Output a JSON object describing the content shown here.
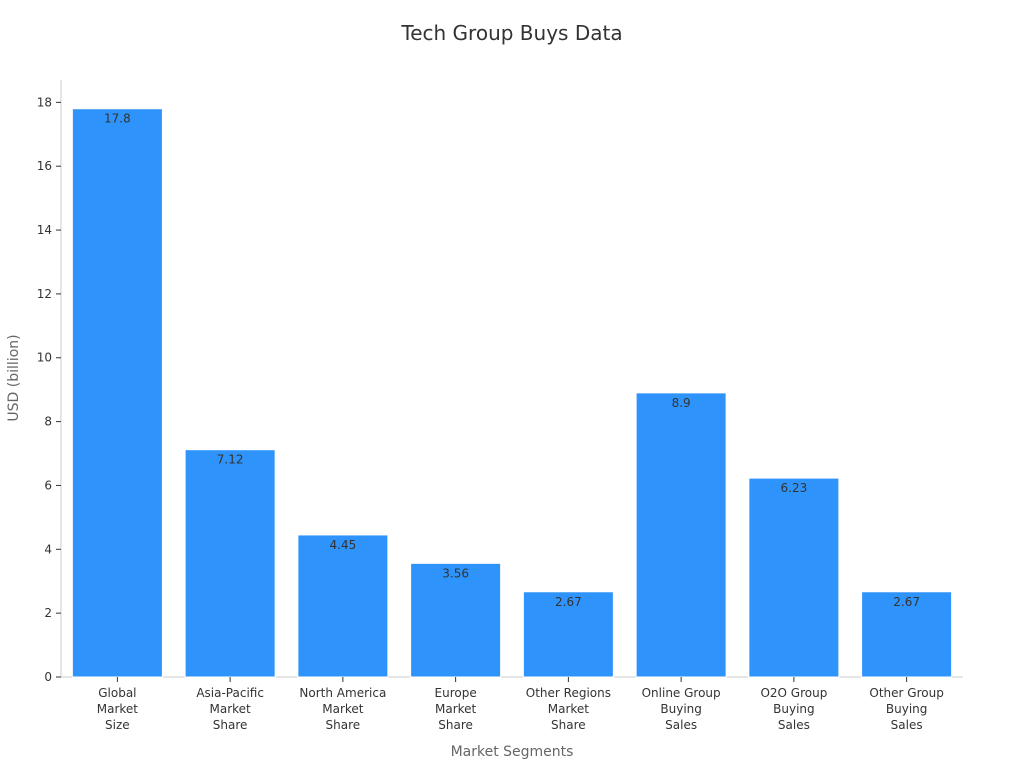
{
  "chart_data": {
    "type": "bar",
    "title": "Tech Group Buys Data",
    "xlabel": "Market Segments",
    "ylabel": "USD (billion)",
    "ylim": [
      0,
      18.7
    ],
    "yticks": [
      0,
      2,
      4,
      6,
      8,
      10,
      12,
      14,
      16,
      18
    ],
    "categories": [
      [
        "Global",
        "Market",
        "Size"
      ],
      [
        "Asia-Pacific",
        "Market",
        "Share"
      ],
      [
        "North America",
        "Market",
        "Share"
      ],
      [
        "Europe",
        "Market",
        "Share"
      ],
      [
        "Other Regions",
        "Market",
        "Share"
      ],
      [
        "Online Group",
        "Buying",
        "Sales"
      ],
      [
        "O2O Group",
        "Buying",
        "Sales"
      ],
      [
        "Other Group",
        "Buying",
        "Sales"
      ]
    ],
    "values": [
      17.8,
      7.12,
      4.45,
      3.56,
      2.67,
      8.9,
      6.23,
      2.67
    ],
    "value_labels": [
      "17.8",
      "7.12",
      "4.45",
      "3.56",
      "2.67",
      "8.9",
      "6.23",
      "2.67"
    ],
    "colors": {
      "bar": "#2e93fa",
      "bar_edge": "#ffffff"
    },
    "grid": false,
    "legend": "none"
  }
}
